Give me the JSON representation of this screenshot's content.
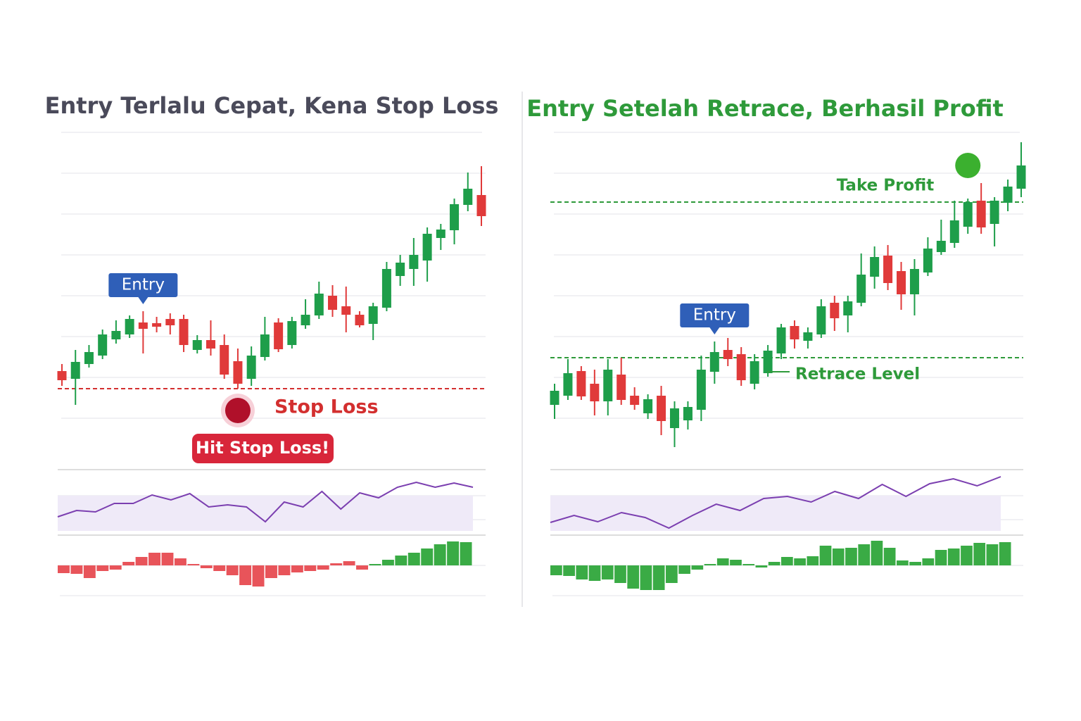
{
  "chart_data": [
    {
      "type": "candlestick",
      "title": "Entry Terlalu Cepat, Kena Stop Loss",
      "title_color": "#4a4a5a",
      "ylim": [
        0,
        460
      ],
      "up_color": "#1e9e4a",
      "down_color": "#e03a3a",
      "candles": {
        "open": [
          123,
          112,
          133,
          145,
          168,
          175,
          192,
          191,
          197,
          197,
          153,
          167,
          160,
          137,
          112,
          143,
          192,
          160,
          188,
          202,
          230,
          215,
          203,
          190,
          213,
          258,
          268,
          280,
          312,
          323,
          359,
          373
        ],
        "high": [
          133,
          153,
          160,
          182,
          195,
          202,
          208,
          200,
          205,
          203,
          174,
          195,
          175,
          155,
          158,
          200,
          198,
          200,
          225,
          250,
          245,
          243,
          208,
          220,
          278,
          288,
          312,
          327,
          332,
          368,
          405,
          414
        ],
        "low": [
          102,
          75,
          128,
          140,
          162,
          170,
          148,
          178,
          175,
          150,
          148,
          145,
          112,
          98,
          102,
          138,
          150,
          155,
          183,
          197,
          200,
          178,
          185,
          167,
          208,
          244,
          244,
          250,
          295,
          303,
          350,
          329
        ],
        "close": [
          110,
          136,
          150,
          175,
          180,
          197,
          183,
          186,
          188,
          160,
          167,
          155,
          118,
          105,
          145,
          175,
          154,
          194,
          203,
          233,
          210,
          203,
          188,
          215,
          268,
          277,
          288,
          318,
          324,
          360,
          382,
          343
        ]
      },
      "entry": {
        "label": "Entry",
        "index": 6
      },
      "levels": [
        {
          "label": "Stop Loss",
          "value": 98,
          "color": "#d32f2f"
        }
      ],
      "marker": {
        "index": 13,
        "value": 67,
        "color": "#b0102a"
      },
      "callout": "Hit Stop Loss!",
      "indicator": {
        "ylim": [
          0,
          100
        ],
        "color": "#7b3fb0",
        "values": [
          26,
          35,
          33,
          45,
          45,
          57,
          50,
          59,
          40,
          43,
          40,
          19,
          47,
          40,
          62,
          37,
          60,
          53,
          68,
          75,
          68,
          74,
          68
        ]
      },
      "histogram": {
        "ylim": [
          -60,
          60
        ],
        "values": [
          -11,
          -12,
          -18,
          -8,
          -6,
          5,
          12,
          18,
          18,
          10,
          2,
          -4,
          -8,
          -14,
          -28,
          -30,
          -18,
          -14,
          -10,
          -8,
          -6,
          3,
          6,
          -6,
          2,
          8,
          14,
          18,
          24,
          30,
          34,
          33
        ],
        "colors": [
          "#e8545a",
          "#e8545a",
          "#e8545a",
          "#e8545a",
          "#e8545a",
          "#e8545a",
          "#e8545a",
          "#e8545a",
          "#e8545a",
          "#e8545a",
          "#e8545a",
          "#e8545a",
          "#e8545a",
          "#e8545a",
          "#e8545a",
          "#e8545a",
          "#e8545a",
          "#e8545a",
          "#e8545a",
          "#e8545a",
          "#e8545a",
          "#e8545a",
          "#e8545a",
          "#e8545a",
          "#3aab45",
          "#3aab45",
          "#3aab45",
          "#3aab45",
          "#3aab45",
          "#3aab45",
          "#3aab45",
          "#3aab45"
        ]
      }
    },
    {
      "type": "candlestick",
      "title": "Entry Setelah Retrace, Berhasil Profit",
      "title_color": "#2e9a3a",
      "ylim": [
        0,
        460
      ],
      "up_color": "#1e9e4a",
      "down_color": "#e03a3a",
      "candles": {
        "open": [
          75,
          88,
          123,
          105,
          80,
          118,
          88,
          63,
          88,
          42,
          53,
          68,
          122,
          153,
          147,
          105,
          120,
          148,
          187,
          166,
          175,
          220,
          202,
          220,
          257,
          287,
          265,
          232,
          263,
          292,
          305,
          328,
          365,
          332,
          362,
          382
        ],
        "high": [
          105,
          140,
          130,
          125,
          140,
          142,
          100,
          90,
          102,
          80,
          80,
          145,
          165,
          170,
          157,
          147,
          160,
          190,
          195,
          185,
          225,
          230,
          230,
          290,
          300,
          302,
          278,
          282,
          313,
          338,
          365,
          368,
          390,
          370,
          395,
          448
        ],
        "low": [
          55,
          82,
          82,
          60,
          60,
          75,
          68,
          55,
          32,
          15,
          40,
          52,
          105,
          130,
          102,
          97,
          115,
          140,
          155,
          155,
          170,
          180,
          178,
          215,
          240,
          238,
          210,
          202,
          258,
          288,
          298,
          318,
          318,
          300,
          350,
          370
        ],
        "close": [
          95,
          120,
          87,
          80,
          125,
          82,
          75,
          83,
          52,
          70,
          72,
          125,
          150,
          140,
          110,
          137,
          152,
          185,
          168,
          178,
          215,
          198,
          222,
          260,
          285,
          248,
          232,
          268,
          297,
          308,
          337,
          363,
          327,
          365,
          385,
          415
        ]
      },
      "entry": {
        "label": "Entry",
        "index": 12
      },
      "levels": [
        {
          "label": "Take Profit",
          "value": 363,
          "color": "#2e9a3a"
        },
        {
          "label": "Retrace Level",
          "value": 142,
          "color": "#2e9a3a"
        }
      ],
      "marker": {
        "index": 31,
        "value": 415,
        "color": "#3bb02f"
      },
      "indicator": {
        "ylim": [
          0,
          100
        ],
        "color": "#7b3fb0",
        "values": [
          18,
          28,
          19,
          32,
          25,
          10,
          28,
          44,
          35,
          52,
          55,
          47,
          62,
          52,
          72,
          55,
          73,
          80,
          70,
          83
        ]
      },
      "histogram": {
        "ylim": [
          -60,
          60
        ],
        "values": [
          -14,
          -15,
          -20,
          -22,
          -20,
          -25,
          -33,
          -35,
          -35,
          -25,
          -12,
          -6,
          2,
          10,
          8,
          2,
          -3,
          5,
          12,
          10,
          13,
          28,
          24,
          25,
          30,
          35,
          25,
          7,
          5,
          10,
          22,
          24,
          28,
          32,
          30,
          33
        ],
        "color": "#3aab45"
      }
    }
  ]
}
